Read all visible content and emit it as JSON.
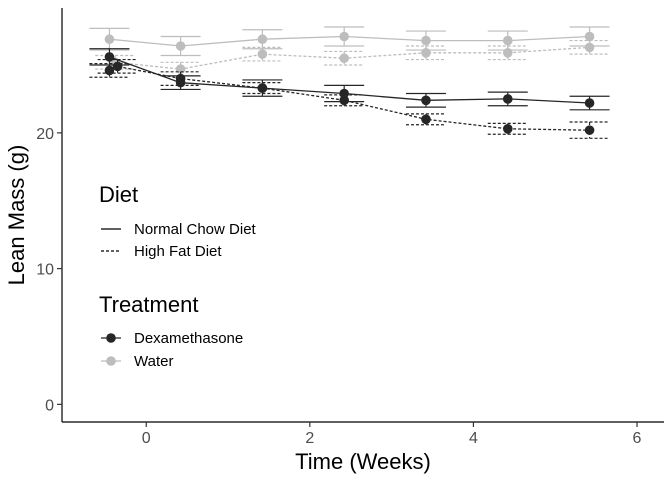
{
  "chart_data": {
    "type": "line",
    "xlabel": "Time (Weeks)",
    "ylabel": "Lean Mass (g)",
    "xlim": [
      -1.03,
      6.33
    ],
    "ylim": [
      -1.3,
      29.2
    ],
    "x_ticks": [
      0,
      2,
      4,
      6
    ],
    "y_ticks": [
      0,
      10,
      20
    ],
    "grid": false,
    "legends": {
      "diet": {
        "title": "Diet",
        "entries": [
          {
            "label": "Normal Chow Diet",
            "linetype": "solid"
          },
          {
            "label": "High Fat Diet",
            "linetype": "dashed"
          }
        ]
      },
      "treatment": {
        "title": "Treatment",
        "entries": [
          {
            "label": "Dexamethasone",
            "color": "#262626"
          },
          {
            "label": "Water",
            "color": "#bdbdbd"
          }
        ]
      }
    },
    "series": [
      {
        "diet": "Normal Chow Diet",
        "treatment": "Water",
        "color": "#bdbdbd",
        "linetype": "solid",
        "x": [
          -0.45,
          0.42,
          1.42,
          2.42,
          3.42,
          4.42,
          5.42
        ],
        "y": [
          26.9,
          26.4,
          26.9,
          27.1,
          26.8,
          26.8,
          27.1
        ],
        "err": [
          0.8,
          0.7,
          0.7,
          0.7,
          0.7,
          0.7,
          0.7
        ]
      },
      {
        "diet": "High Fat Diet",
        "treatment": "Water",
        "color": "#bdbdbd",
        "linetype": "dashed",
        "x": [
          -0.38,
          0.42,
          1.42,
          2.42,
          3.42,
          4.42,
          5.42
        ],
        "y": [
          25.2,
          24.7,
          25.8,
          25.5,
          25.9,
          25.9,
          26.3
        ],
        "err": [
          0.5,
          0.5,
          0.5,
          0.5,
          0.5,
          0.5,
          0.5
        ]
      },
      {
        "diet": "Normal Chow Diet",
        "treatment": "Dexamethasone",
        "color": "#262626",
        "linetype": "solid",
        "x": [
          -0.45,
          0.42,
          1.42,
          2.42,
          3.42,
          4.42,
          5.42
        ],
        "y": [
          25.6,
          23.7,
          23.3,
          22.9,
          22.4,
          22.5,
          22.2
        ],
        "err": [
          0.6,
          0.5,
          0.6,
          0.6,
          0.5,
          0.5,
          0.5
        ]
      },
      {
        "diet": "High Fat Diet",
        "treatment": "Dexamethasone",
        "color": "#262626",
        "linetype": "dashed",
        "x": [
          -0.45,
          -0.35,
          0.42,
          1.42,
          2.42,
          3.42,
          4.42,
          5.42
        ],
        "y": [
          24.6,
          24.9,
          24.0,
          23.3,
          22.4,
          21.0,
          20.3,
          20.2
        ],
        "err": [
          0.5,
          0.5,
          0.5,
          0.4,
          0.4,
          0.4,
          0.4,
          0.6
        ]
      }
    ]
  }
}
